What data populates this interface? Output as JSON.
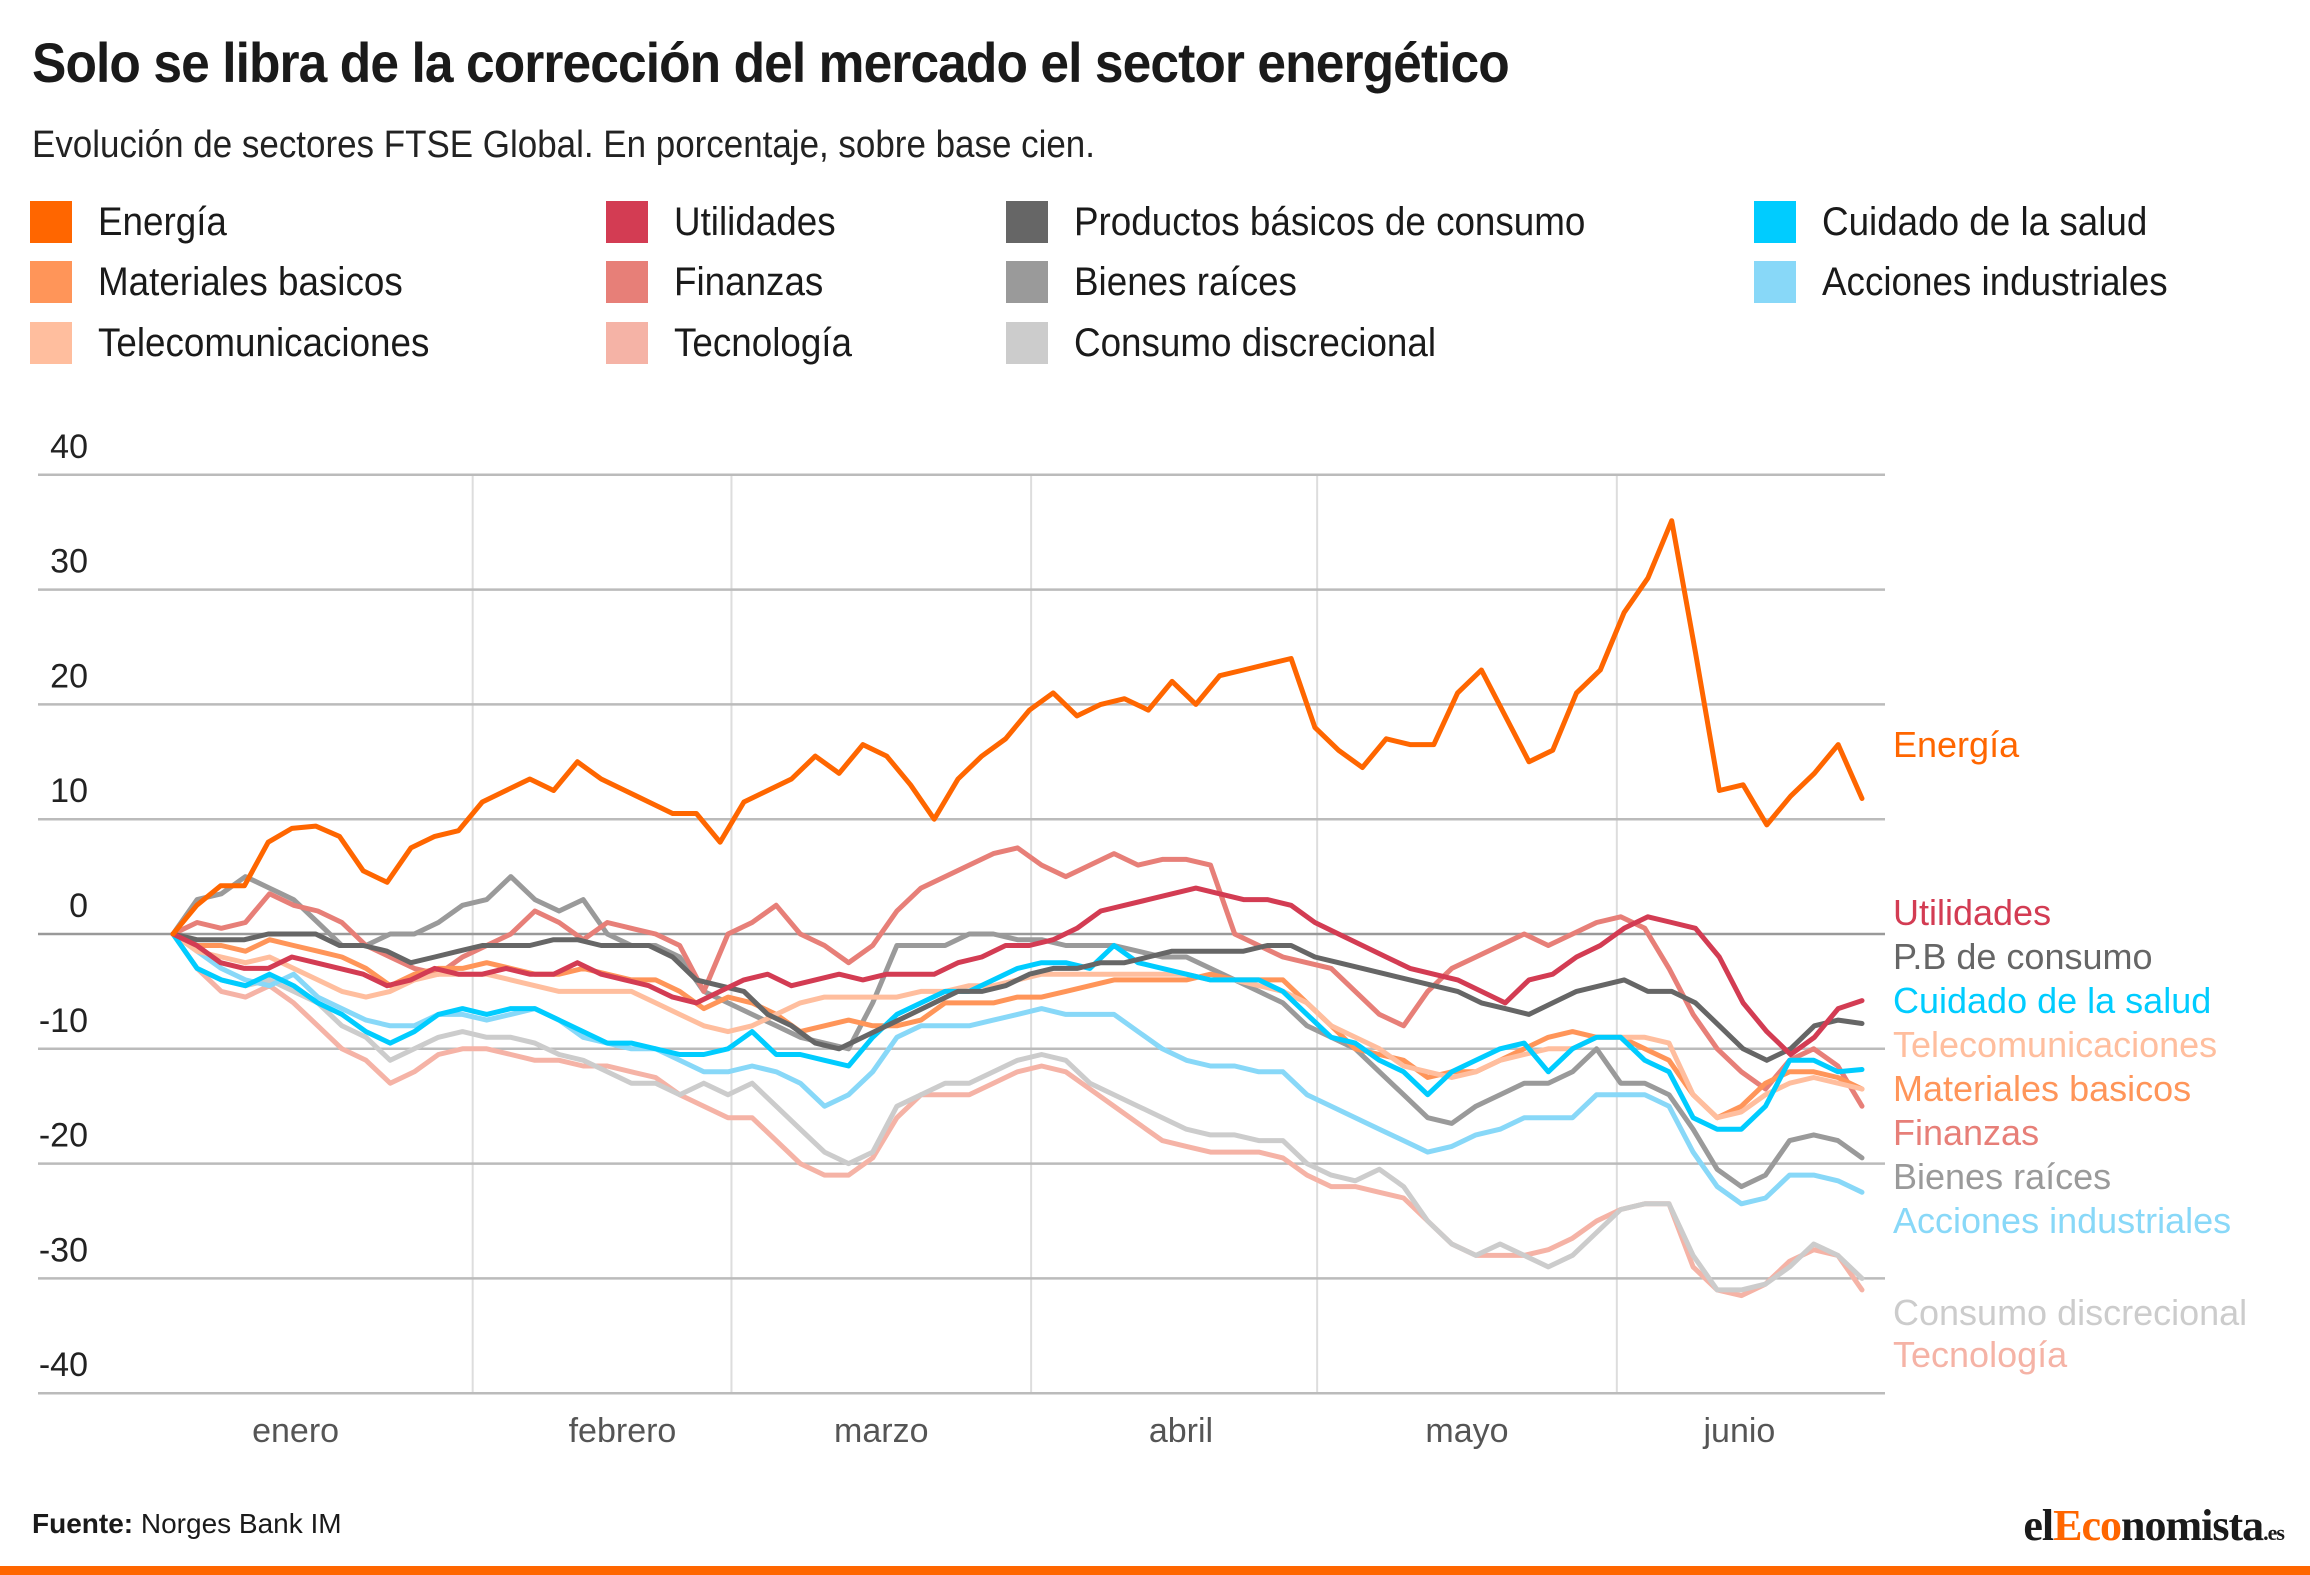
{
  "header": {
    "title": "Solo se libra de la corrección del mercado el sector energético",
    "subtitle": "Evolución de sectores FTSE Global. En porcentaje, sobre base cien."
  },
  "legend": [
    {
      "label": "Energía",
      "color": "#ff6600"
    },
    {
      "label": "Materiales basicos",
      "color": "#ff9559"
    },
    {
      "label": "Telecomunicaciones",
      "color": "#ffbe9e"
    },
    {
      "label": "Utilidades",
      "color": "#d33c53"
    },
    {
      "label": "Finanzas",
      "color": "#e77f78"
    },
    {
      "label": "Tecnología",
      "color": "#f5b3a6"
    },
    {
      "label": "Productos básicos de consumo",
      "color": "#666666"
    },
    {
      "label": "Bienes raíces",
      "color": "#9a9a9a"
    },
    {
      "label": "Consumo discrecional",
      "color": "#cccccc"
    },
    {
      "label": "Cuidado de la salud",
      "color": "#00ccff"
    },
    {
      "label": "Acciones industriales",
      "color": "#88d8f8"
    }
  ],
  "footer": {
    "source_label": "Fuente:",
    "source_value": "Norges Bank IM",
    "logo_el": "el",
    "logo_eco": "Eco",
    "logo_nomista": "nomista",
    "logo_es": ".es"
  },
  "chart_data": {
    "type": "line",
    "title": "Solo se libra de la corrección del mercado el sector energético",
    "subtitle": "Evolución de sectores FTSE Global. En porcentaje, sobre base cien.",
    "xlabel": "",
    "ylabel": "",
    "ylim": [
      -40,
      40
    ],
    "yticks": [
      40,
      30,
      20,
      10,
      0,
      -10,
      -20,
      -30,
      -40
    ],
    "x_unit": "trading day index (every 2 days)",
    "x_range": [
      0,
      124
    ],
    "month_ticks": [
      {
        "label": "enero",
        "x": 9
      },
      {
        "label": "febrero",
        "x": 33
      },
      {
        "label": "marzo",
        "x": 52
      },
      {
        "label": "abril",
        "x": 74
      },
      {
        "label": "mayo",
        "x": 95
      },
      {
        "label": "junio",
        "x": 115
      }
    ],
    "month_boundaries": [
      22,
      41,
      63,
      84,
      106
    ],
    "grid": true,
    "legend_position": "top",
    "series": [
      {
        "name": "Energía",
        "end_label": "Energía",
        "color": "#ff6600",
        "width": 5,
        "values": [
          0,
          2.5,
          4.2,
          4.2,
          8,
          9.2,
          9.4,
          8.5,
          5.5,
          4.5,
          7.5,
          8.5,
          9,
          11.5,
          12.5,
          13.5,
          12.5,
          15,
          13.5,
          12.5,
          11.5,
          10.5,
          10.5,
          8,
          11.5,
          12.5,
          13.5,
          15.5,
          14,
          16.5,
          15.5,
          13,
          10,
          13.5,
          15.5,
          17,
          19.5,
          21,
          19,
          20,
          20.5,
          19.5,
          22,
          20,
          22.5,
          23,
          23.5,
          24,
          18,
          16,
          14.5,
          17,
          16.5,
          16.5,
          21,
          23,
          19,
          15,
          16,
          21,
          23,
          28,
          31,
          36,
          24.5,
          12.5,
          13,
          9.5,
          12,
          14,
          16.5,
          11.8
        ]
      },
      {
        "name": "Utilidades",
        "end_label": "Utilidades",
        "color": "#d33c53",
        "width": 5,
        "values": [
          0,
          -1,
          -2.5,
          -3,
          -3,
          -2,
          -2.5,
          -3,
          -3.5,
          -4.5,
          -4,
          -3,
          -3.5,
          -3.5,
          -3,
          -3.5,
          -3.5,
          -2.5,
          -3.5,
          -4,
          -4.5,
          -5.5,
          -6,
          -5,
          -4,
          -3.5,
          -4.5,
          -4,
          -3.5,
          -4,
          -3.5,
          -3.5,
          -3.5,
          -2.5,
          -2,
          -1,
          -1,
          -0.5,
          0.5,
          2,
          2.5,
          3,
          3.5,
          4,
          3.5,
          3,
          3,
          2.5,
          1,
          0,
          -1,
          -2,
          -3,
          -3.5,
          -4,
          -5,
          -6,
          -4,
          -3.5,
          -2,
          -1,
          0.5,
          1.5,
          1,
          0.5,
          -2,
          -6,
          -8.5,
          -10.5,
          -9,
          -6.5,
          -5.8
        ]
      },
      {
        "name": "P.B de consumo",
        "legend_name": "Productos básicos de consumo",
        "end_label": "P.B de consumo",
        "color": "#666666",
        "width": 5,
        "values": [
          0,
          -0.5,
          -0.5,
          -0.5,
          0,
          0,
          0,
          -1,
          -1,
          -1.5,
          -2.5,
          -2,
          -1.5,
          -1,
          -1,
          -1,
          -0.5,
          -0.5,
          -1,
          -1,
          -1,
          -2,
          -4,
          -4.5,
          -5,
          -7,
          -8,
          -9.5,
          -10,
          -9,
          -8,
          -7,
          -6,
          -5,
          -5,
          -4.5,
          -3.5,
          -3,
          -3,
          -2.5,
          -2.5,
          -2,
          -1.5,
          -1.5,
          -1.5,
          -1.5,
          -1,
          -1,
          -2,
          -2.5,
          -3,
          -3.5,
          -4,
          -4.5,
          -5,
          -6,
          -6.5,
          -7,
          -6,
          -5,
          -4.5,
          -4,
          -5,
          -5,
          -6,
          -8,
          -10,
          -11,
          -10,
          -8,
          -7.5,
          -7.8
        ]
      },
      {
        "name": "Cuidado de la salud",
        "end_label": "Cuidado de la salud",
        "color": "#00ccff",
        "width": 5,
        "values": [
          0,
          -3,
          -4,
          -4.5,
          -3.5,
          -4.5,
          -6,
          -7,
          -8.5,
          -9.5,
          -8.5,
          -7,
          -6.5,
          -7,
          -6.5,
          -6.5,
          -7.5,
          -8.5,
          -9.5,
          -9.5,
          -10,
          -10.5,
          -10.5,
          -10,
          -8.5,
          -10.5,
          -10.5,
          -11,
          -11.5,
          -9,
          -7,
          -6,
          -5,
          -5,
          -4,
          -3,
          -2.5,
          -2.5,
          -3,
          -1,
          -2.5,
          -3,
          -3.5,
          -4,
          -4,
          -4,
          -5,
          -7,
          -9,
          -9.5,
          -11,
          -12,
          -14,
          -12,
          -11,
          -10,
          -9.5,
          -12,
          -10,
          -9,
          -9,
          -11,
          -12,
          -16,
          -17,
          -17,
          -15,
          -11,
          -11,
          -12,
          -11.8
        ]
      },
      {
        "name": "Telecomunicaciones",
        "end_label": "Telecomunicaciones",
        "color": "#ffbe9e",
        "width": 5,
        "values": [
          0,
          -1.5,
          -2,
          -2.5,
          -2,
          -3,
          -4,
          -5,
          -5.5,
          -5,
          -4,
          -3.5,
          -3.5,
          -3.5,
          -4,
          -4.5,
          -5,
          -5,
          -5,
          -5,
          -6,
          -7,
          -8,
          -8.5,
          -8,
          -7,
          -6,
          -5.5,
          -5.5,
          -5.5,
          -5.5,
          -5,
          -5,
          -4.5,
          -4.5,
          -4,
          -3.5,
          -3.5,
          -3.5,
          -3.5,
          -3.5,
          -3.5,
          -3.5,
          -4,
          -4,
          -4.5,
          -5,
          -6,
          -8,
          -9,
          -10,
          -11.5,
          -12,
          -12.5,
          -12,
          -11,
          -10.5,
          -10,
          -10,
          -9,
          -9,
          -9,
          -9.5,
          -14,
          -16,
          -15.5,
          -14,
          -13,
          -12.5,
          -13,
          -13.5
        ]
      },
      {
        "name": "Materiales basicos",
        "end_label": "Materiales basicos",
        "color": "#ff9559",
        "width": 5,
        "values": [
          0,
          -1,
          -1,
          -1.5,
          -0.5,
          -1,
          -1.5,
          -2,
          -3,
          -4.5,
          -3.5,
          -3,
          -3,
          -2.5,
          -3,
          -3.5,
          -3.5,
          -3,
          -3.5,
          -4,
          -4,
          -5,
          -6.5,
          -5.5,
          -6,
          -7,
          -8.5,
          -8,
          -7.5,
          -8,
          -8,
          -7.5,
          -6,
          -6,
          -6,
          -5.5,
          -5.5,
          -5,
          -4.5,
          -4,
          -4,
          -4,
          -4,
          -3.5,
          -4,
          -4,
          -4,
          -6,
          -8,
          -10,
          -10.5,
          -11,
          -12.5,
          -12,
          -12,
          -11,
          -10,
          -9,
          -8.5,
          -9,
          -9,
          -10,
          -11,
          -14,
          -16,
          -15,
          -13,
          -12,
          -12,
          -12.5,
          -13.5
        ]
      },
      {
        "name": "Finanzas",
        "end_label": "Finanzas",
        "color": "#e77f78",
        "width": 5,
        "values": [
          0,
          1,
          0.5,
          1,
          3.5,
          2.5,
          2,
          1,
          -1,
          -2,
          -3,
          -3.5,
          -2,
          -1,
          0,
          2,
          1,
          -0.5,
          1,
          0.5,
          0,
          -1,
          -5,
          0,
          1,
          2.5,
          0,
          -1,
          -2.5,
          -1,
          2,
          4,
          5,
          6,
          7,
          7.5,
          6,
          5,
          6,
          7,
          6,
          6.5,
          6.5,
          6,
          0,
          -1,
          -2,
          -2.5,
          -3,
          -5,
          -7,
          -8,
          -5,
          -3,
          -2,
          -1,
          0,
          -1,
          0,
          1,
          1.5,
          0.5,
          -3,
          -7,
          -10,
          -12,
          -13.5,
          -11,
          -10,
          -11.5,
          -15
        ]
      },
      {
        "name": "Bienes raíces",
        "end_label": "Bienes raíces",
        "color": "#9a9a9a",
        "width": 5,
        "values": [
          0,
          3,
          3.5,
          5,
          4,
          3,
          1,
          -1,
          -1,
          0,
          0,
          1,
          2.5,
          3,
          5,
          3,
          2,
          3,
          0,
          -1,
          -1,
          -2,
          -5,
          -6,
          -7,
          -8,
          -9,
          -9.5,
          -10,
          -6,
          -1,
          -1,
          -1,
          0,
          0,
          -0.5,
          -0.5,
          -1,
          -1,
          -1,
          -1.5,
          -2,
          -2,
          -3,
          -4,
          -5,
          -6,
          -8,
          -9,
          -10,
          -12,
          -14,
          -16,
          -16.5,
          -15,
          -14,
          -13,
          -13,
          -12,
          -10,
          -13,
          -13,
          -14,
          -17,
          -20.5,
          -22,
          -21,
          -18,
          -17.5,
          -18,
          -19.5
        ]
      },
      {
        "name": "Acciones industriales",
        "end_label": "Acciones industriales",
        "color": "#88d8f8",
        "width": 5,
        "values": [
          0,
          -1.5,
          -3,
          -4,
          -4.5,
          -3.5,
          -5.5,
          -6.5,
          -7.5,
          -8,
          -8,
          -7,
          -7,
          -7.5,
          -7,
          -6.5,
          -7.5,
          -9,
          -9.5,
          -10,
          -10,
          -11,
          -12,
          -12,
          -11.5,
          -12,
          -13,
          -15,
          -14,
          -12,
          -9,
          -8,
          -8,
          -8,
          -7.5,
          -7,
          -6.5,
          -7,
          -7,
          -7,
          -8.5,
          -10,
          -11,
          -11.5,
          -11.5,
          -12,
          -12,
          -14,
          -15,
          -16,
          -17,
          -18,
          -19,
          -18.5,
          -17.5,
          -17,
          -16,
          -16,
          -16,
          -14,
          -14,
          -14,
          -15,
          -19,
          -22,
          -23.5,
          -23,
          -21,
          -21,
          -21.5,
          -22.5
        ]
      },
      {
        "name": "Consumo discrecional",
        "end_label": "Consumo discrecional",
        "color": "#cccccc",
        "width": 5,
        "values": [
          0,
          -3,
          -4,
          -4.5,
          -4,
          -5,
          -6,
          -8,
          -9,
          -11,
          -10,
          -9,
          -8.5,
          -9,
          -9,
          -9.5,
          -10.5,
          -11,
          -12,
          -13,
          -13,
          -14,
          -13,
          -14,
          -13,
          -15,
          -17,
          -19,
          -20,
          -19,
          -15,
          -14,
          -13,
          -13,
          -12,
          -11,
          -10.5,
          -11,
          -13,
          -14,
          -15,
          -16,
          -17,
          -17.5,
          -17.5,
          -18,
          -18,
          -20,
          -21,
          -21.5,
          -20.5,
          -22,
          -25,
          -27,
          -28,
          -27,
          -28,
          -29,
          -28,
          -26,
          -24,
          -23.5,
          -23.5,
          -28,
          -31,
          -31,
          -30.5,
          -29,
          -27,
          -28,
          -30
        ]
      },
      {
        "name": "Tecnología",
        "end_label": "Tecnología",
        "color": "#f5b3a6",
        "width": 5,
        "values": [
          0,
          -3,
          -5,
          -5.5,
          -4.5,
          -6,
          -8,
          -10,
          -11,
          -13,
          -12,
          -10.5,
          -10,
          -10,
          -10.5,
          -11,
          -11,
          -11.5,
          -11.5,
          -12,
          -12.5,
          -14,
          -15,
          -16,
          -16,
          -18,
          -20,
          -21,
          -21,
          -19.5,
          -16,
          -14,
          -14,
          -14,
          -13,
          -12,
          -11.5,
          -12,
          -13.5,
          -15,
          -16.5,
          -18,
          -18.5,
          -19,
          -19,
          -19,
          -19.5,
          -21,
          -22,
          -22,
          -22.5,
          -23,
          -25,
          -27,
          -28,
          -28,
          -28,
          -27.5,
          -26.5,
          -25,
          -24,
          -23.5,
          -23.5,
          -29,
          -31,
          -31.5,
          -30.5,
          -28.5,
          -27.5,
          -28,
          -31
        ]
      }
    ]
  }
}
